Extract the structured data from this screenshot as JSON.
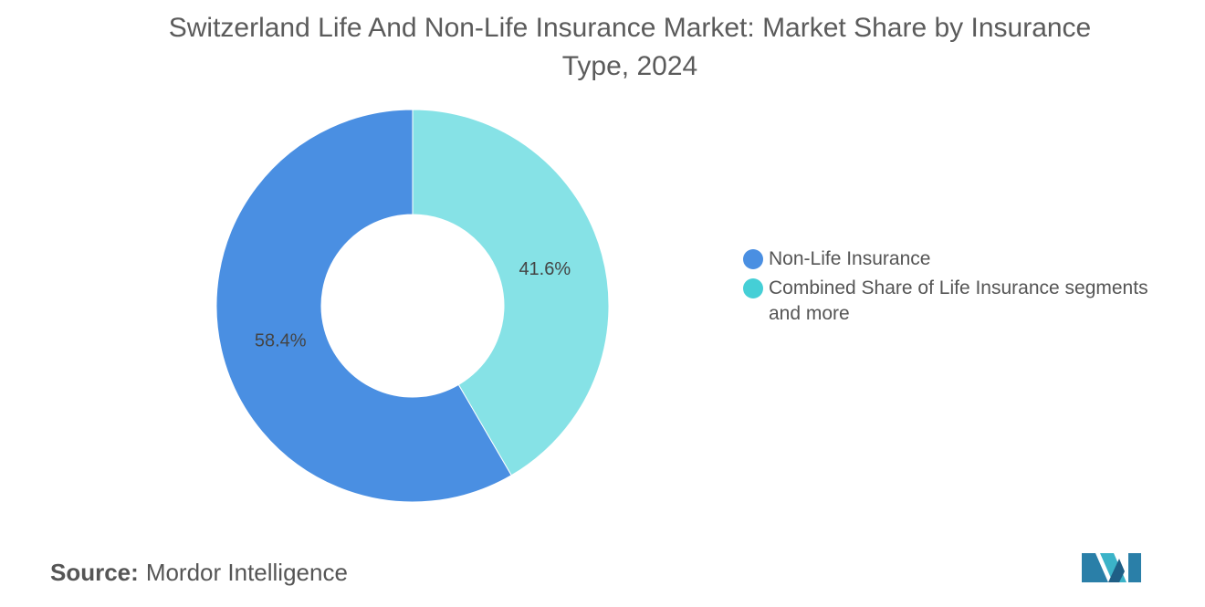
{
  "chart_data": {
    "type": "pie",
    "title": "Switzerland Life And Non-Life Insurance Market: Market Share by Insurance Type, 2024",
    "categories": [
      "Non-Life Insurance",
      "Combined Share of Life Insurance segments and more"
    ],
    "values": [
      58.4,
      41.6
    ],
    "value_labels": [
      "58.4%",
      "41.6%"
    ],
    "colors": [
      "#4a8fe2",
      "#86e2e6"
    ],
    "legend_colors": [
      "#4a8fe2",
      "#45cfd6"
    ],
    "source_label": "Source:",
    "source": "Mordor Intelligence"
  }
}
